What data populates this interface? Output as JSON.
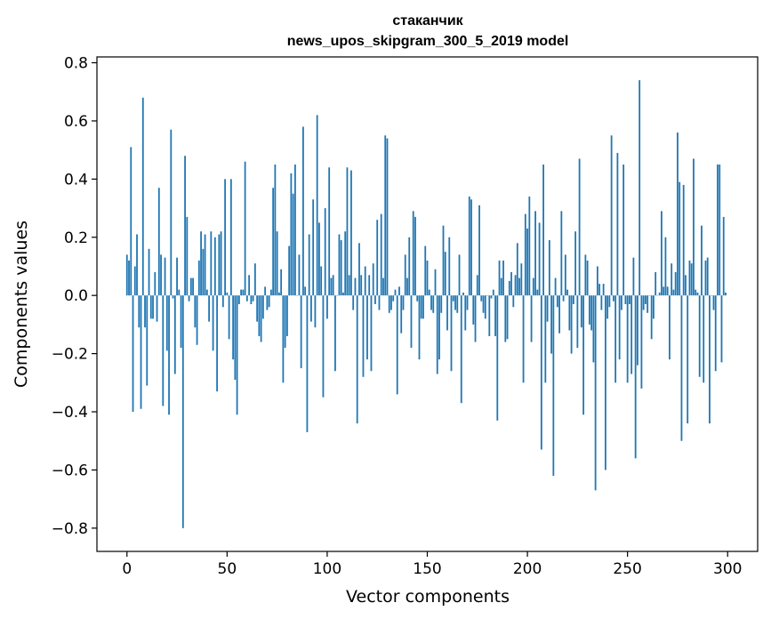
{
  "chart_data": {
    "type": "bar",
    "title": [
      "стаканчик",
      "news_upos_skipgram_300_5_2019 model"
    ],
    "xlabel": "Vector components",
    "ylabel": "Components values",
    "xlim": [
      -15,
      315
    ],
    "ylim": [
      -0.88,
      0.82
    ],
    "x_ticks": [
      0,
      50,
      100,
      150,
      200,
      250,
      300
    ],
    "x_tick_labels": [
      "0",
      "50",
      "100",
      "150",
      "200",
      "250",
      "300"
    ],
    "y_ticks": [
      -0.8,
      -0.6,
      -0.4,
      -0.2,
      0.0,
      0.2,
      0.4,
      0.6,
      0.8
    ],
    "y_tick_labels": [
      "−0.8",
      "−0.6",
      "−0.4",
      "−0.2",
      "0.0",
      "0.2",
      "0.4",
      "0.6",
      "0.8"
    ],
    "grid": false,
    "bar_color": "#1f77b4",
    "x": "0..299",
    "values": [
      0.14,
      0.12,
      0.51,
      -0.4,
      0.1,
      0.21,
      -0.11,
      -0.39,
      0.68,
      -0.11,
      -0.31,
      0.16,
      -0.08,
      -0.08,
      0.08,
      -0.09,
      0.37,
      0.14,
      -0.38,
      0.13,
      -0.19,
      -0.41,
      0.57,
      -0.01,
      -0.27,
      0.13,
      0.02,
      -0.18,
      -0.8,
      0.48,
      0.27,
      -0.02,
      0.06,
      0.06,
      -0.11,
      -0.17,
      0.12,
      0.22,
      0.16,
      0.21,
      0.02,
      -0.09,
      0.22,
      -0.19,
      0.2,
      -0.33,
      0.21,
      0.22,
      -0.04,
      0.4,
      0.01,
      -0.15,
      0.4,
      -0.22,
      -0.29,
      -0.41,
      -0.03,
      0.02,
      0.02,
      0.46,
      -0.02,
      0.07,
      -0.03,
      -0.02,
      0.11,
      -0.09,
      -0.14,
      -0.16,
      -0.08,
      0.03,
      -0.05,
      -0.04,
      0.02,
      0.37,
      0.45,
      0.22,
      0.01,
      0.09,
      -0.3,
      -0.18,
      -0.14,
      0.17,
      0.42,
      0.35,
      0.45,
      0.0,
      0.14,
      -0.25,
      0.58,
      0.03,
      -0.47,
      0.21,
      -0.09,
      0.33,
      -0.11,
      0.62,
      0.25,
      0.1,
      -0.35,
      0.3,
      -0.08,
      0.44,
      0.06,
      0.07,
      -0.26,
      0.0,
      0.21,
      0.19,
      0.01,
      0.22,
      0.44,
      0.07,
      0.43,
      -0.05,
      0.06,
      -0.44,
      0.18,
      0.07,
      -0.28,
      0.1,
      -0.22,
      0.07,
      -0.26,
      0.11,
      -0.03,
      0.26,
      -0.05,
      0.28,
      0.06,
      0.55,
      0.54,
      -0.06,
      -0.05,
      -0.02,
      0.02,
      -0.34,
      0.03,
      -0.13,
      -0.05,
      0.14,
      0.06,
      0.2,
      -0.18,
      0.29,
      0.27,
      -0.02,
      -0.22,
      -0.08,
      -0.08,
      0.17,
      0.12,
      0.02,
      -0.05,
      -0.06,
      0.09,
      -0.27,
      -0.22,
      -0.06,
      0.24,
      0.15,
      -0.12,
      0.2,
      -0.26,
      -0.02,
      -0.05,
      -0.06,
      0.14,
      -0.37,
      0.01,
      -0.12,
      -0.05,
      0.34,
      0.33,
      -0.1,
      -0.16,
      0.07,
      0.31,
      -0.02,
      -0.06,
      -0.08,
      0.0,
      -0.14,
      -0.01,
      0.02,
      -0.14,
      -0.43,
      0.12,
      0.06,
      0.12,
      -0.16,
      -0.15,
      0.05,
      0.08,
      -0.04,
      0.07,
      0.18,
      0.06,
      0.11,
      -0.3,
      0.28,
      0.23,
      0.34,
      -0.16,
      0.06,
      0.29,
      0.02,
      0.25,
      -0.53,
      0.45,
      -0.3,
      -0.09,
      0.19,
      -0.2,
      -0.62,
      0.06,
      -0.04,
      -0.13,
      0.29,
      -0.02,
      0.14,
      0.02,
      -0.12,
      -0.2,
      -0.03,
      0.22,
      -0.18,
      0.47,
      -0.11,
      -0.41,
      0.14,
      0.12,
      -0.1,
      -0.12,
      -0.23,
      -0.67,
      0.1,
      0.04,
      -0.05,
      0.04,
      -0.6,
      -0.08,
      -0.04,
      0.55,
      -0.02,
      -0.3,
      0.49,
      -0.22,
      -0.05,
      0.45,
      -0.03,
      -0.3,
      -0.03,
      -0.27,
      0.13,
      -0.56,
      -0.24,
      0.74,
      -0.32,
      -0.05,
      -0.03,
      -0.06,
      0.0,
      -0.15,
      -0.08,
      0.08,
      0.0,
      0.01,
      0.29,
      0.03,
      0.2,
      0.03,
      -0.22,
      0.11,
      0.02,
      0.08,
      0.56,
      0.39,
      -0.5,
      0.38,
      0.07,
      -0.44,
      0.12,
      0.11,
      0.47,
      0.02,
      0.01,
      -0.28,
      0.24,
      -0.3,
      0.12,
      0.13,
      -0.44,
      0.0,
      -0.05,
      -0.26,
      0.45,
      0.45,
      -0.23,
      0.27,
      0.01
    ]
  }
}
